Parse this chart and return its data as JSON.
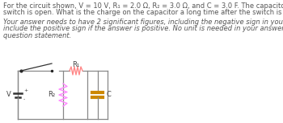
{
  "text_lines": [
    "For the circuit shown, V = 10 V, R₁ = 2.0 Ω, R₂ = 3.0 Ω, and C = 3.0 F. The capacitor is initially uncharged and the",
    "switch is open. What is the charge on the capacitor a long time after the switch is closed, in Coulomb?"
  ],
  "italic_lines": [
    "Your answer needs to have 2 significant figures, including the negative sign in your answer if needed. Do not",
    "include the positive sign if the answer is positive. No unit is needed in your answer, it is already given in the",
    "question statement."
  ],
  "bg_color": "#ffffff",
  "text_color": "#555555",
  "text_fontsize": 6.0,
  "circuit": {
    "r1_label": "R₁",
    "r2_label": "R₂",
    "c_label": "C",
    "v_label": "V",
    "wire_color": "#888888",
    "r1_color": "#ff8888",
    "r2_color": "#ff88ff",
    "c_color": "#cc8800",
    "switch_color": "#333333",
    "label_color": "#444444",
    "label_fontsize": 6.0
  }
}
